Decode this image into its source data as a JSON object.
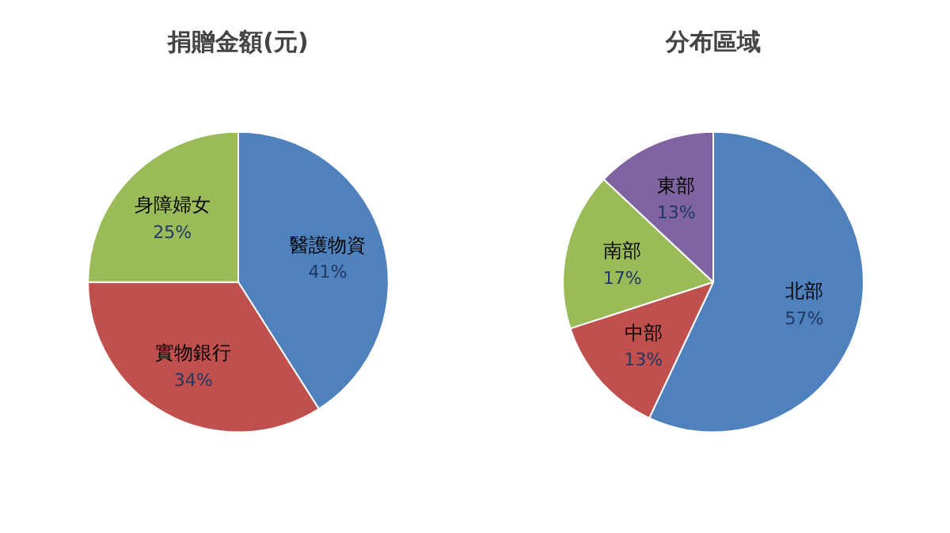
{
  "chart_data": [
    {
      "type": "pie",
      "title": "捐贈金額(元)",
      "categories": [
        "醫護物資",
        "實物銀行",
        "身障婦女"
      ],
      "values": [
        41,
        34,
        25
      ],
      "colors": [
        "#4f81bd",
        "#c0504d",
        "#9bbb59"
      ],
      "value_labels": [
        "41%",
        "34%",
        "25%"
      ],
      "legend": false
    },
    {
      "type": "pie",
      "title": "分布區域",
      "categories": [
        "北部",
        "中部",
        "南部",
        "東部"
      ],
      "values": [
        57,
        13,
        17,
        13
      ],
      "colors": [
        "#4f81bd",
        "#c0504d",
        "#9bbb59",
        "#8064a2"
      ],
      "value_labels": [
        "57%",
        "13%",
        "17%",
        "13%"
      ],
      "legend": false
    }
  ]
}
